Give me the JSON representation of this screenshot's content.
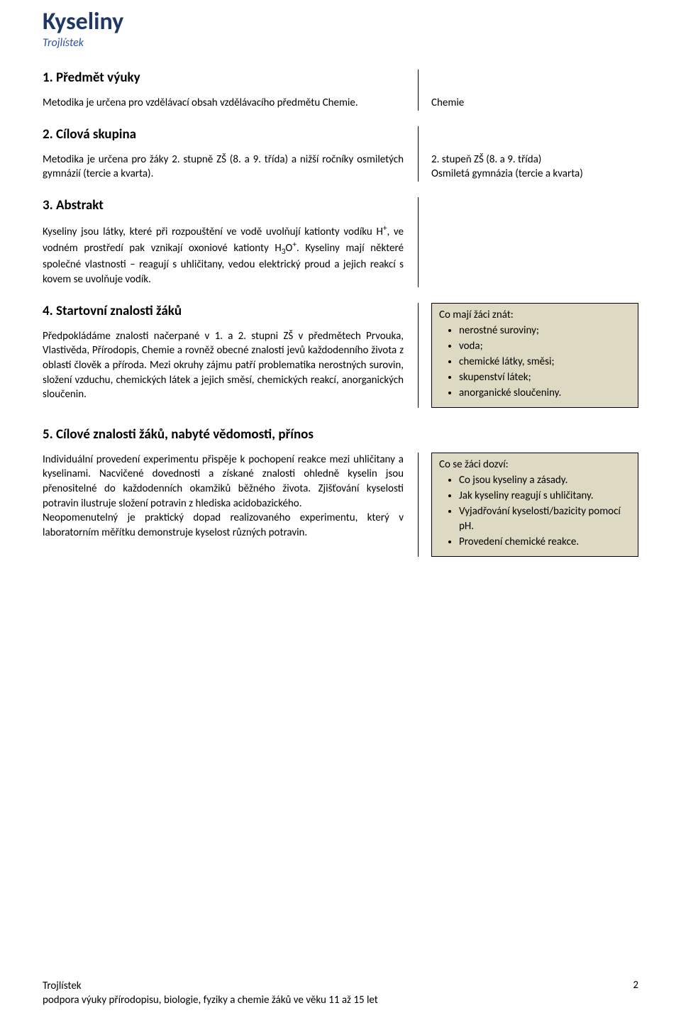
{
  "doc": {
    "title": "Kyseliny",
    "subtitle": "Trojlístek"
  },
  "s1": {
    "head": "1. Předmět výuky",
    "left": "Metodika je určena pro vzdělávací obsah vzdělávacího předmětu Chemie.",
    "right": "Chemie"
  },
  "s2": {
    "head": "2. Cílová skupina",
    "left": "Metodika je určena pro žáky 2. stupně ZŠ (8. a 9. třída) a nižší ročníky osmiletých gymnázií (tercie a kvarta).",
    "right_l1": "2. stupeň ZŠ (8. a 9. třída)",
    "right_l2": "Osmiletá gymnázia (tercie a kvarta)"
  },
  "s3": {
    "head": "3. Abstrakt",
    "p1a": "Kyseliny jsou látky, které při rozpouštění ve vodě uvolňují kationty vodíku H",
    "p1b": ", ve vodném prostředí pak vznikají oxoniové kationty H",
    "p1c": ". Kyseliny mají některé společné vlastnosti – reagují s uhličitany, vedou elektrický proud a jejich reakcí s kovem se uvolňuje vodík."
  },
  "s4": {
    "head": "4. Startovní znalosti žáků",
    "left": "Předpokládáme znalosti načerpané v 1. a 2. stupni ZŠ v předmětech Prvouka, Vlastivěda, Přírodopis, Chemie a rovněž obecné znalosti jevů každodenního života z oblasti člověk a příroda. Mezi okruhy zájmu patří problematika nerostných surovin, složení vzduchu, chemických látek a jejich směsí, chemických reakcí, anorganických sloučenin.",
    "box_title": "Co mají žáci znát:",
    "box_items": [
      "nerostné suroviny;",
      "voda;",
      "chemické látky, směsi;",
      "skupenství látek;",
      "anorganické sloučeniny."
    ]
  },
  "s5": {
    "head": "5. Cílové znalosti žáků, nabyté vědomosti, přínos",
    "left_p1": "Individuální provedení experimentu přispěje k pochopení reakce mezi uhličitany a kyselinami. Nacvičené dovednosti a získané znalosti ohledně kyselin jsou přenositelné do každodenních okamžiků běžného života. Zjišťování kyselosti potravin ilustruje složení potravin z hlediska acidobazického.",
    "left_p2": "Neopomenutelný je praktický dopad realizovaného experimentu, který v laboratorním měřítku demonstruje kyselost různých potravin.",
    "box_title": "Co se žáci dozví:",
    "box_items": [
      "Co jsou kyseliny a zásady.",
      "Jak kyseliny reagují s uhličitany.",
      "Vyjadřování kyselosti/bazicity pomocí pH.",
      "Provedení chemické reakce."
    ]
  },
  "footer": {
    "left_l1": "Trojlístek",
    "left_l2": "podpora výuky přírodopisu, biologie, fyziky a chemie žáků ve věku 11 až 15 let",
    "page": "2"
  },
  "colors": {
    "title": "#1f3864",
    "subtitle": "#2f5496",
    "box_bg": "#ddd9c3",
    "text": "#000000"
  }
}
